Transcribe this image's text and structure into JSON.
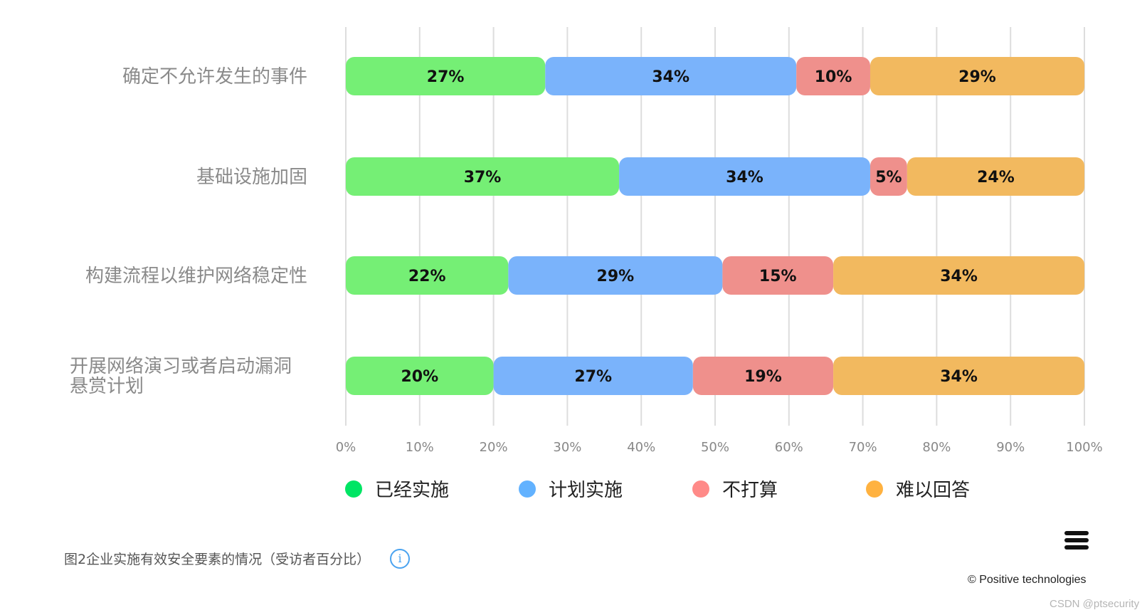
{
  "chart_data": {
    "type": "bar",
    "orientation": "horizontal",
    "stacked": true,
    "categories": [
      [
        "确定不允许发生的事件"
      ],
      [
        "基础设施加固"
      ],
      [
        "构建流程以维护网络稳定性"
      ],
      [
        "开展网络演习或者启动漏洞",
        "悬赏计划"
      ]
    ],
    "series": [
      {
        "name": "已经实施",
        "color": "#75ef75",
        "legend_color": "#00e564",
        "values": [
          27,
          37,
          22,
          20
        ]
      },
      {
        "name": "计划实施",
        "color": "#7ab3fb",
        "legend_color": "#62b2ff",
        "values": [
          34,
          34,
          29,
          27
        ]
      },
      {
        "name": "不打算",
        "color": "#ef908c",
        "legend_color": "#ff8a88",
        "values": [
          10,
          5,
          15,
          19
        ]
      },
      {
        "name": "难以回答",
        "color": "#f2b95f",
        "legend_color": "#ffb240",
        "values": [
          29,
          24,
          34,
          34
        ]
      }
    ],
    "value_suffix": "%",
    "xlim": [
      0,
      100
    ],
    "xticks": [
      "0%",
      "10%",
      "20%",
      "30%",
      "40%",
      "50%",
      "60%",
      "70%",
      "80%",
      "90%",
      "100%"
    ],
    "grid": "vertical",
    "legend_position": "bottom"
  },
  "caption": "图2企业实施有效安全要素的情况（受访者百分比）",
  "info_icon": "i",
  "copyright": "© Positive technologies",
  "watermark": "CSDN @ptsecurity"
}
